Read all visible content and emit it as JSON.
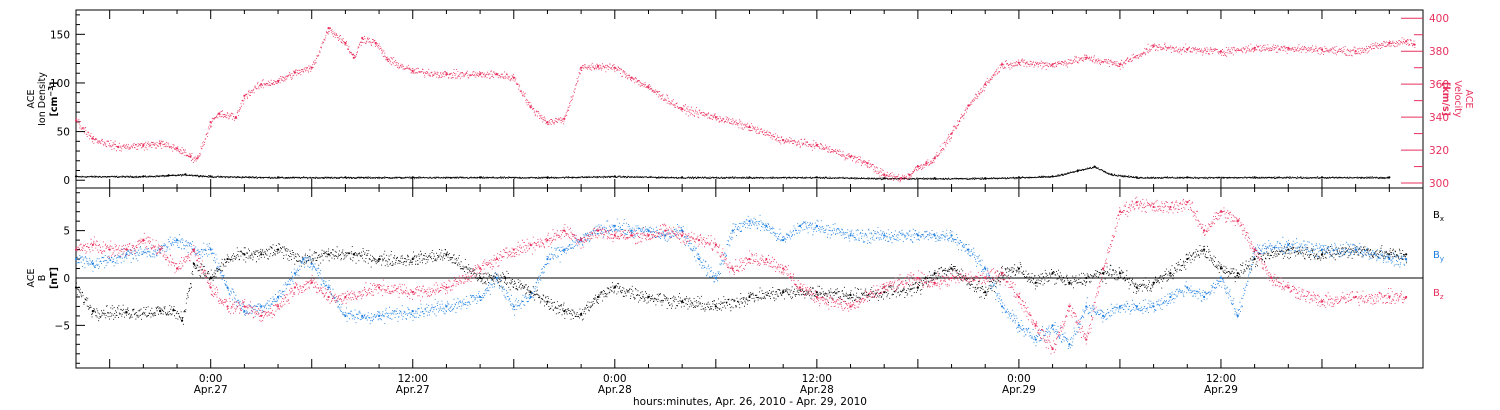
{
  "figure": {
    "xlabel": "hours:minutes, Apr. 26, 2010 - Apr. 29, 2010"
  },
  "chart_data": [
    {
      "type": "scatter",
      "panel": "plasma",
      "x_unit": "hours since 2010-04-26 00:00",
      "xlim": [
        16,
        96
      ],
      "x_ticks": [
        {
          "x": 24,
          "top": "0:00",
          "bottom": "Apr.27"
        },
        {
          "x": 36,
          "top": "12:00",
          "bottom": "Apr.27"
        },
        {
          "x": 48,
          "top": "0:00",
          "bottom": "Apr.28"
        },
        {
          "x": 60,
          "top": "12:00",
          "bottom": "Apr.28"
        },
        {
          "x": 72,
          "top": "0:00",
          "bottom": "Apr.29"
        },
        {
          "x": 84,
          "top": "12:00",
          "bottom": "Apr.29"
        }
      ],
      "y_left": {
        "label_lines": [
          "ACE",
          "Ion Density"
        ],
        "unit_prefix": "[cm",
        "unit_exp": "−3",
        "unit_suffix": "]",
        "ylim": [
          -8,
          175
        ],
        "ticks": [
          0,
          50,
          100,
          150
        ]
      },
      "y_right": {
        "label_lines": [
          "ACE",
          "Velocity"
        ],
        "unit": "[km/s]",
        "ylim": [
          297,
          405
        ],
        "ticks": [
          300,
          320,
          340,
          360,
          380,
          400
        ]
      },
      "series": [
        {
          "name": "",
          "axis": "left",
          "color": "#000000",
          "x": [
            16,
            20,
            21.5,
            22.5,
            24,
            28,
            32,
            36,
            40,
            44,
            48,
            52,
            56,
            60,
            64,
            67,
            70,
            72,
            74,
            75.5,
            76.5,
            77.5,
            79,
            82,
            86,
            90,
            94
          ],
          "y": [
            4,
            4,
            5,
            6,
            4,
            3,
            3,
            3,
            3,
            3,
            4,
            3,
            3,
            3,
            2,
            2,
            2,
            3,
            4,
            10,
            14,
            6,
            3,
            3,
            3,
            3,
            3
          ]
        },
        {
          "name": "",
          "axis": "right",
          "color": "#e8305e",
          "x": [
            16,
            17,
            18.5,
            20,
            21,
            22,
            22.8,
            23.2,
            24,
            24.5,
            25.5,
            26,
            27,
            28,
            29,
            30,
            31,
            32,
            32.5,
            33,
            33.8,
            34.5,
            36,
            38,
            40,
            41,
            42,
            43,
            44,
            45,
            46,
            47,
            48,
            49,
            50,
            52,
            54,
            56,
            58,
            60,
            62,
            63,
            64,
            65,
            65.5,
            66,
            66.5,
            67,
            68,
            69,
            70,
            71,
            72,
            74,
            76,
            78,
            80,
            82,
            84,
            86,
            88,
            90,
            92,
            94,
            95,
            95.5
          ],
          "y": [
            338,
            327,
            322,
            323,
            324,
            321,
            316,
            315,
            337,
            342,
            340,
            353,
            360,
            362,
            367,
            370,
            394,
            385,
            376,
            388,
            385,
            375,
            368,
            366,
            366,
            366,
            364,
            346,
            337,
            339,
            370,
            371,
            370,
            364,
            358,
            345,
            340,
            334,
            326,
            323,
            316,
            312,
            305,
            303,
            305,
            310,
            312,
            315,
            330,
            347,
            360,
            372,
            373,
            372,
            376,
            372,
            383,
            381,
            380,
            382,
            382,
            381,
            380,
            385,
            386,
            384
          ]
        }
      ]
    },
    {
      "type": "scatter",
      "panel": "magnetic-field",
      "x_unit": "hours since 2010-04-26 00:00",
      "xlim": [
        16,
        96
      ],
      "y_left": {
        "label_lines": [
          "ACE",
          "B"
        ],
        "unit": "[nT]",
        "ylim": [
          -9.5,
          9.5
        ],
        "ticks": [
          -5,
          0,
          5
        ]
      },
      "zero_line": true,
      "legend": {
        "placement": "right",
        "entries": [
          {
            "base": "B",
            "sub": "x",
            "color": "#000000"
          },
          {
            "base": "B",
            "sub": "y",
            "color": "#1e7fe0"
          },
          {
            "base": "B",
            "sub": "z",
            "color": "#e8305e"
          }
        ]
      },
      "series": [
        {
          "name": "Bx",
          "axis": "left",
          "color": "#000000",
          "x": [
            16,
            17,
            19,
            21,
            21.8,
            22.3,
            23,
            24,
            25,
            26,
            27,
            28,
            29.5,
            31,
            32.5,
            34,
            36,
            38,
            40,
            41.5,
            43,
            44,
            45,
            46,
            47,
            48,
            50,
            52,
            54,
            56,
            58,
            60,
            62,
            64,
            66,
            67,
            68,
            70,
            71,
            72,
            73,
            74,
            75,
            76,
            77,
            78,
            79,
            80,
            81,
            82,
            83,
            84,
            85,
            86,
            88,
            90,
            92,
            94,
            95
          ],
          "y": [
            -1,
            -3.5,
            -3.6,
            -3.5,
            -3.4,
            -4.5,
            1.5,
            0,
            2,
            2.5,
            2.5,
            3,
            2,
            2.5,
            2.5,
            2,
            2,
            2.5,
            0,
            0,
            -1.5,
            -2.5,
            -3.5,
            -3.8,
            -2,
            -1,
            -2,
            -2.5,
            -3,
            -2,
            -1.5,
            -1.5,
            -1.8,
            -1.5,
            -1,
            0.5,
            1,
            -1.5,
            0.5,
            1,
            -0.5,
            0.5,
            -0.5,
            0,
            0.5,
            0.5,
            -1,
            -0.5,
            0.5,
            2,
            3,
            1,
            0.5,
            2,
            3,
            2.5,
            3,
            2.5,
            2.5
          ]
        },
        {
          "name": "By",
          "axis": "left",
          "color": "#1e7fe0",
          "x": [
            16,
            17,
            19,
            21,
            22,
            23,
            24,
            25,
            26,
            27,
            28,
            29,
            29.5,
            30,
            31,
            32,
            33,
            34,
            36,
            38,
            40,
            41,
            42,
            43,
            44,
            45,
            46,
            47,
            48,
            49,
            50,
            51,
            52,
            53,
            54,
            55,
            56,
            57,
            58,
            59,
            60,
            62,
            64,
            66,
            67,
            68,
            69,
            70,
            71,
            72,
            73,
            74,
            75,
            76,
            77,
            78,
            79,
            80,
            81,
            82,
            83,
            84,
            85,
            86,
            88,
            90,
            92,
            94,
            95
          ],
          "y": [
            2,
            1.5,
            2.5,
            3,
            4,
            3,
            3,
            -1,
            -3.5,
            -3,
            -2,
            0.5,
            2,
            1.5,
            -1,
            -4,
            -4,
            -4,
            -3.5,
            -3,
            -2,
            0,
            -3,
            -2,
            2,
            3,
            4,
            5,
            5.5,
            5,
            5,
            4.5,
            5,
            2,
            0,
            5,
            6,
            5.5,
            4,
            5.5,
            5.5,
            4.5,
            4.5,
            4.5,
            4.5,
            4.5,
            3,
            1,
            -3,
            -5,
            -6.5,
            -5,
            -7,
            -3,
            -4,
            -3,
            -3,
            -3,
            -2,
            -1,
            -2,
            0,
            -4,
            3,
            3.5,
            3,
            3,
            2,
            2
          ]
        },
        {
          "name": "Bz",
          "axis": "left",
          "color": "#e8305e",
          "x": [
            16,
            17,
            18,
            19,
            20,
            21,
            22,
            23,
            24,
            25,
            26,
            27,
            28,
            29,
            30,
            31,
            32,
            34,
            36,
            38,
            40,
            41,
            42,
            43,
            44,
            45,
            46,
            47,
            48,
            49,
            50,
            51,
            52,
            53,
            54,
            55,
            56,
            57,
            58,
            59,
            60,
            62,
            64,
            66,
            67,
            68,
            70,
            71,
            72,
            73,
            74,
            75,
            76,
            77,
            78,
            79,
            80,
            81,
            82,
            83,
            84,
            85,
            86,
            87,
            88,
            90,
            92,
            94,
            95
          ],
          "y": [
            3,
            3.5,
            3,
            3,
            4,
            3,
            1,
            3,
            -1,
            -3,
            -3,
            -4,
            -3,
            -1,
            -0.5,
            -2,
            -2,
            -1,
            -1.5,
            -1,
            1,
            2,
            3,
            3.5,
            4,
            5,
            4,
            5,
            4.5,
            4.5,
            4.5,
            5,
            4.5,
            4,
            3.5,
            1,
            2,
            2,
            1,
            -1,
            -2,
            -3,
            -1,
            0,
            -0.5,
            0,
            0,
            0.5,
            -2,
            -5,
            -7.5,
            -3,
            -6.5,
            1,
            7,
            8,
            7.5,
            7.5,
            8,
            5,
            7,
            6,
            3,
            0,
            -1,
            -2.5,
            -2,
            -2,
            -2
          ]
        }
      ]
    }
  ]
}
